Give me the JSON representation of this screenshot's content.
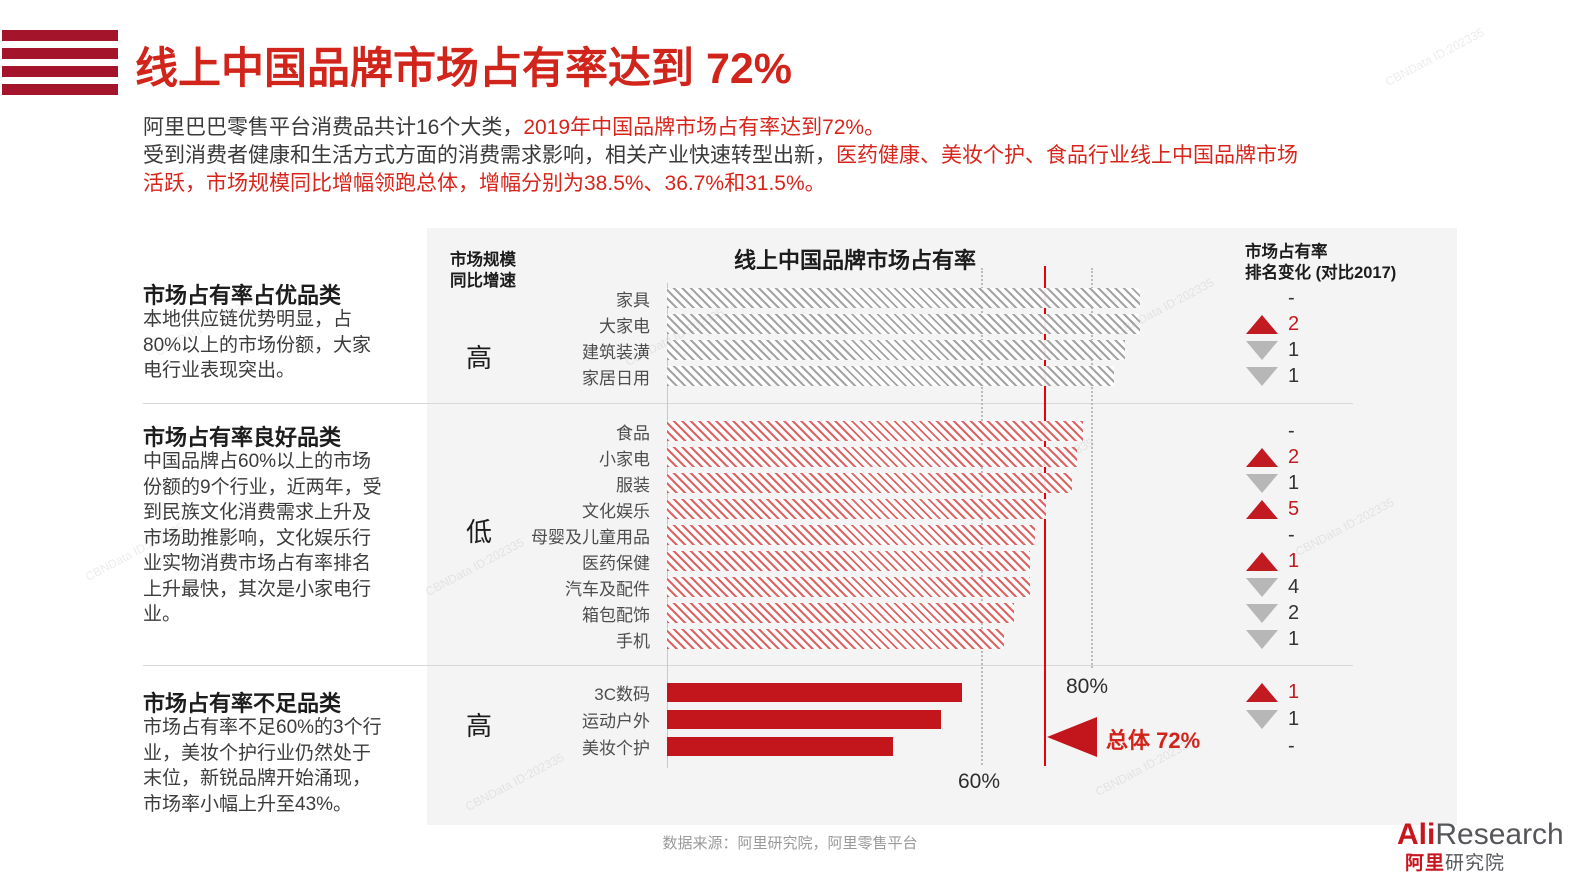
{
  "header": {
    "title": "线上中国品牌市场占有率达到 72%"
  },
  "intro": {
    "line1_black": "阿里巴巴零售平台消费品共计16个大类，",
    "line1_red": "2019年中国品牌市场占有率达到72%。",
    "line2_black": "受到消费者健康和生活方式方面的消费需求影响，相关产业快速转型出新，",
    "line2_red": "医药健康、美妆个护、食品行业线上中国品牌市场",
    "line3_red": "活跃，市场规模同比增幅领跑总体，增幅分别为38.5%、36.7%和31.5%。"
  },
  "left_notes": [
    {
      "heading": "市场占有率占优品类",
      "body": "本地供应链优势明显，占80%以上的市场份额，大家电行业表现突出。"
    },
    {
      "heading": "市场占有率良好品类",
      "body": "中国品牌占60%以上的市场份额的9个行业，近两年，受到民族文化消费需求上升及市场助推影响，文化娱乐行业实物消费市场占有率排名上升最快，其次是小家电行业。"
    },
    {
      "heading": "市场占有率不足品类",
      "body": "市场占有率不足60%的3个行业，美妆个护行业仍然处于末位，新锐品牌开始涌现，市场率小幅上升至43%。"
    }
  ],
  "columns": {
    "growth_line1": "市场规模",
    "growth_line2": "同比增速",
    "rank_line1": "市场占有率",
    "rank_line2": "排名变化 (对比2017)"
  },
  "chart_data": {
    "type": "bar",
    "orientation": "horizontal",
    "title": "线上中国品牌市场占有率",
    "unit": "%",
    "xlim": [
      0,
      100
    ],
    "axis_labels": {
      "p60": "60%",
      "p80": "80%"
    },
    "overall_label": "总体 72%",
    "overall_value": 72,
    "reference_lines": [
      {
        "value": 60,
        "label": "60%",
        "style": "dotted"
      },
      {
        "value": 72,
        "label": "总体 72%",
        "style": "solid-red"
      },
      {
        "value": 80,
        "label": "80%",
        "style": "dotted"
      }
    ],
    "groups": [
      {
        "name": "市场占有率占优品类",
        "growth": "高",
        "bar_style": "gray-hatch",
        "items": [
          {
            "category": "家具",
            "value": 90,
            "change": "-",
            "dir": "none"
          },
          {
            "category": "大家电",
            "value": 90,
            "change": "2",
            "dir": "up"
          },
          {
            "category": "建筑装潢",
            "value": 87,
            "change": "1",
            "dir": "down"
          },
          {
            "category": "家居日用",
            "value": 85,
            "change": "1",
            "dir": "down"
          }
        ]
      },
      {
        "name": "市场占有率良好品类",
        "growth": "低",
        "bar_style": "red-hatch",
        "items": [
          {
            "category": "食品",
            "value": 79,
            "change": "-",
            "dir": "none"
          },
          {
            "category": "小家电",
            "value": 78,
            "change": "2",
            "dir": "up"
          },
          {
            "category": "服装",
            "value": 77,
            "change": "1",
            "dir": "down"
          },
          {
            "category": "文化娱乐",
            "value": 72,
            "change": "5",
            "dir": "up"
          },
          {
            "category": "母婴及儿童用品",
            "value": 70,
            "change": "-",
            "dir": "none"
          },
          {
            "category": "医药保健",
            "value": 69,
            "change": "1",
            "dir": "up"
          },
          {
            "category": "汽车及配件",
            "value": 69,
            "change": "4",
            "dir": "down"
          },
          {
            "category": "箱包配饰",
            "value": 66,
            "change": "2",
            "dir": "down"
          },
          {
            "category": "手机",
            "value": 64,
            "change": "1",
            "dir": "down"
          }
        ]
      },
      {
        "name": "市场占有率不足品类",
        "growth": "高",
        "bar_style": "red-solid",
        "items": [
          {
            "category": "3C数码",
            "value": 56,
            "change": "1",
            "dir": "up"
          },
          {
            "category": "运动户外",
            "value": 52,
            "change": "1",
            "dir": "down"
          },
          {
            "category": "美妆个护",
            "value": 43,
            "change": "-",
            "dir": "none"
          }
        ]
      }
    ]
  },
  "footer": {
    "source": "数据来源：阿里研究院，阿里零售平台"
  },
  "logo": {
    "en_red": "Ali",
    "en_gray": "Research",
    "cn_red": "阿里",
    "cn_gray": "研究院"
  },
  "watermark": "CBNData ID:202335"
}
